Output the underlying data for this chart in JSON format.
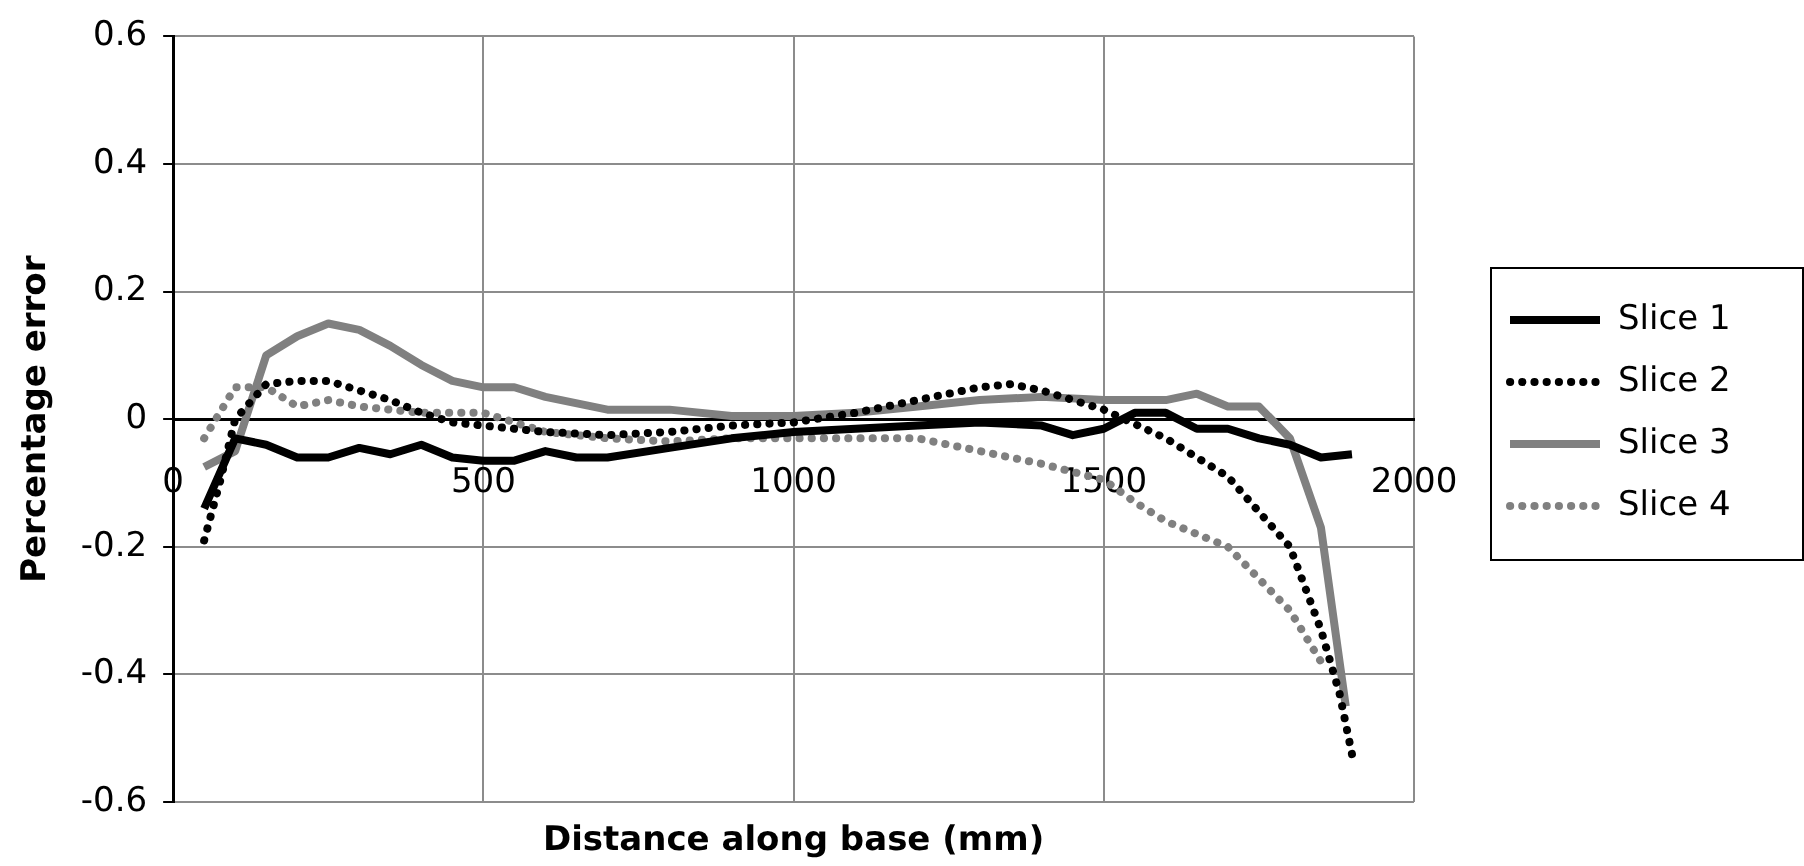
{
  "chart_data": {
    "type": "line",
    "xlabel": "Distance along base (mm)",
    "ylabel": "Percentage error",
    "xlim": [
      0,
      2000
    ],
    "xticks": [
      0,
      500,
      1000,
      1500,
      2000
    ],
    "ylim": [
      -0.6,
      0.6
    ],
    "yticks": [
      -0.6,
      -0.4,
      -0.2,
      0,
      0.2,
      0.4,
      0.6
    ],
    "grid": true,
    "legend": "right",
    "marker": "none",
    "series": [
      {
        "name": "Slice 1",
        "color": "#000000",
        "line_style": "solid",
        "x": [
          50,
          100,
          150,
          200,
          250,
          300,
          350,
          400,
          450,
          500,
          550,
          600,
          650,
          700,
          800,
          900,
          1000,
          1100,
          1200,
          1300,
          1400,
          1450,
          1500,
          1550,
          1600,
          1650,
          1700,
          1750,
          1800,
          1850,
          1900
        ],
        "values": [
          -0.14,
          -0.03,
          -0.04,
          -0.06,
          -0.06,
          -0.045,
          -0.055,
          -0.04,
          -0.06,
          -0.065,
          -0.065,
          -0.05,
          -0.06,
          -0.06,
          -0.045,
          -0.03,
          -0.02,
          -0.015,
          -0.01,
          -0.005,
          -0.01,
          -0.025,
          -0.015,
          0.01,
          0.01,
          -0.015,
          -0.015,
          -0.03,
          -0.04,
          -0.06,
          -0.055
        ]
      },
      {
        "name": "Slice 2",
        "color": "#000000",
        "line_style": "dotted",
        "x": [
          50,
          75,
          100,
          150,
          200,
          250,
          300,
          350,
          400,
          450,
          500,
          600,
          700,
          800,
          900,
          1000,
          1100,
          1200,
          1300,
          1350,
          1400,
          1450,
          1500,
          1600,
          1650,
          1700,
          1750,
          1800,
          1850,
          1880,
          1900
        ],
        "values": [
          -0.19,
          -0.1,
          0,
          0.055,
          0.06,
          0.06,
          0.045,
          0.03,
          0.01,
          -0.005,
          -0.01,
          -0.02,
          -0.025,
          -0.02,
          -0.01,
          -0.005,
          0.01,
          0.03,
          0.05,
          0.055,
          0.045,
          0.03,
          0.015,
          -0.03,
          -0.06,
          -0.09,
          -0.145,
          -0.2,
          -0.33,
          -0.43,
          -0.525
        ]
      },
      {
        "name": "Slice 3",
        "color": "#808080",
        "line_style": "solid",
        "x": [
          50,
          100,
          150,
          200,
          250,
          300,
          350,
          400,
          450,
          500,
          550,
          600,
          700,
          800,
          900,
          1000,
          1100,
          1200,
          1300,
          1400,
          1500,
          1600,
          1650,
          1700,
          1750,
          1800,
          1850,
          1890
        ],
        "values": [
          -0.075,
          -0.05,
          0.1,
          0.13,
          0.15,
          0.14,
          0.115,
          0.085,
          0.06,
          0.05,
          0.05,
          0.035,
          0.015,
          0.015,
          0.005,
          0.005,
          0.01,
          0.02,
          0.03,
          0.035,
          0.03,
          0.03,
          0.04,
          0.02,
          0.02,
          -0.03,
          -0.17,
          -0.45
        ]
      },
      {
        "name": "Slice 4",
        "color": "#808080",
        "line_style": "dotted",
        "x": [
          50,
          100,
          150,
          200,
          250,
          300,
          400,
          500,
          600,
          700,
          800,
          900,
          1000,
          1100,
          1200,
          1300,
          1400,
          1500,
          1550,
          1600,
          1700,
          1750,
          1800,
          1850
        ],
        "values": [
          -0.03,
          0.05,
          0.05,
          0.02,
          0.03,
          0.02,
          0.01,
          0.01,
          -0.02,
          -0.03,
          -0.035,
          -0.03,
          -0.03,
          -0.03,
          -0.03,
          -0.05,
          -0.07,
          -0.095,
          -0.13,
          -0.16,
          -0.2,
          -0.25,
          -0.3,
          -0.38
        ]
      }
    ]
  }
}
